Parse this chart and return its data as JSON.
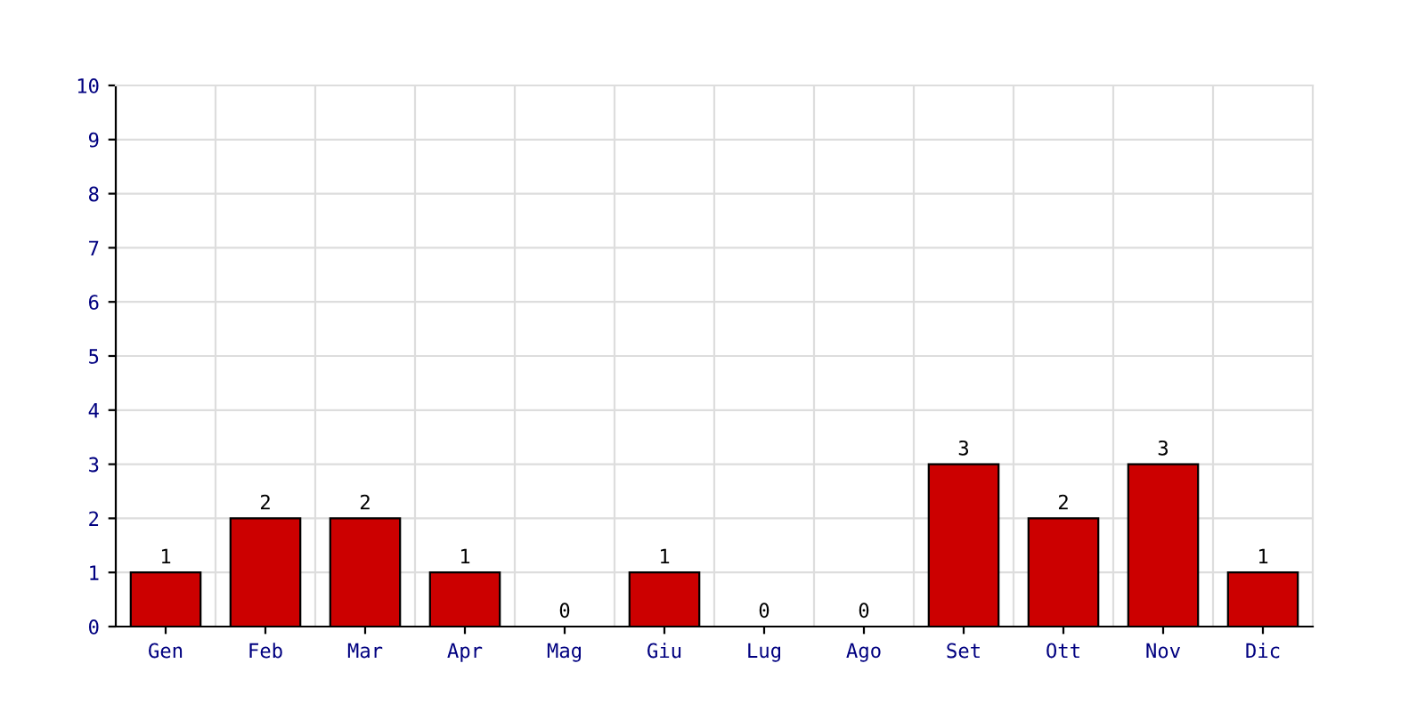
{
  "chart_data": {
    "type": "bar",
    "categories": [
      "Gen",
      "Feb",
      "Mar",
      "Apr",
      "Mag",
      "Giu",
      "Lug",
      "Ago",
      "Set",
      "Ott",
      "Nov",
      "Dic"
    ],
    "values": [
      1,
      2,
      2,
      1,
      0,
      1,
      0,
      0,
      3,
      2,
      3,
      1
    ],
    "color": "#cc0000",
    "ylim": [
      0,
      10
    ],
    "yticks": [
      0,
      1,
      2,
      3,
      4,
      5,
      6,
      7,
      8,
      9,
      10
    ],
    "grid": true,
    "data_labels": true
  }
}
